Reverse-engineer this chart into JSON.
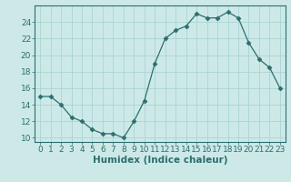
{
  "x": [
    0,
    1,
    2,
    3,
    4,
    5,
    6,
    7,
    8,
    9,
    10,
    11,
    12,
    13,
    14,
    15,
    16,
    17,
    18,
    19,
    20,
    21,
    22,
    23
  ],
  "y": [
    15.0,
    15.0,
    14.0,
    12.5,
    12.0,
    11.0,
    10.5,
    10.5,
    10.0,
    12.0,
    14.5,
    19.0,
    22.0,
    23.0,
    23.5,
    25.0,
    24.5,
    24.5,
    25.2,
    24.5,
    21.5,
    19.5,
    18.5,
    16.0
  ],
  "line_color": "#2d6e6e",
  "marker": "D",
  "marker_size": 2.5,
  "bg_color": "#cce9e8",
  "grid_color": "#aad4d3",
  "xlabel": "Humidex (Indice chaleur)",
  "xlim": [
    -0.5,
    23.5
  ],
  "ylim": [
    9.5,
    26.0
  ],
  "yticks": [
    10,
    12,
    14,
    16,
    18,
    20,
    22,
    24
  ],
  "xticks": [
    0,
    1,
    2,
    3,
    4,
    5,
    6,
    7,
    8,
    9,
    10,
    11,
    12,
    13,
    14,
    15,
    16,
    17,
    18,
    19,
    20,
    21,
    22,
    23
  ],
  "tick_color": "#2d6e6e",
  "label_color": "#2d6e6e",
  "font_size": 6.5,
  "xlabel_fontsize": 7.5
}
